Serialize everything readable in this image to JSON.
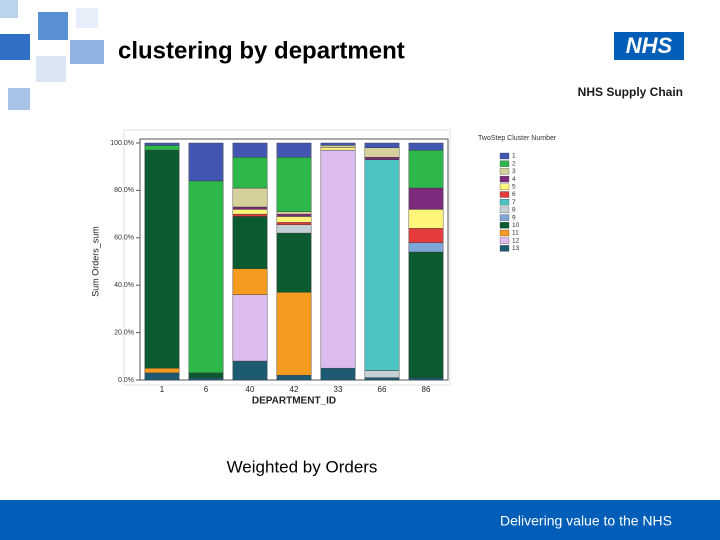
{
  "slide": {
    "title": "clustering by department",
    "logo": "NHS",
    "logo_subtitle": "NHS Supply Chain",
    "caption": "Weighted by Orders",
    "footer": "Delivering value to the NHS"
  },
  "chart_data": {
    "type": "stacked_bar",
    "x_label": "DEPARTMENT_ID",
    "y_label": "Sum Orders_sum",
    "legend_title": "TwoStep Cluster Number",
    "categories": [
      "1",
      "6",
      "40",
      "42",
      "33",
      "66",
      "86"
    ],
    "ylim": [
      0,
      100
    ],
    "yticks": [
      {
        "value": 0,
        "label": "0.0%"
      },
      {
        "value": 20,
        "label": "20.0%"
      },
      {
        "value": 40,
        "label": "40.0%"
      },
      {
        "value": 60,
        "label": "60.0%"
      },
      {
        "value": 80,
        "label": "80.0%"
      },
      {
        "value": 100,
        "label": "100.0%"
      }
    ],
    "series": [
      {
        "name": "1",
        "color": "#4257b2",
        "values": [
          1,
          16,
          6,
          6,
          1,
          2,
          3
        ]
      },
      {
        "name": "2",
        "color": "#2eb84c",
        "values": [
          2,
          81,
          13,
          23,
          0,
          0,
          16
        ]
      },
      {
        "name": "3",
        "color": "#d5d09c",
        "values": [
          0,
          0,
          8,
          1,
          1,
          4,
          0
        ]
      },
      {
        "name": "4",
        "color": "#7c2a7c",
        "values": [
          0,
          0,
          1,
          1,
          0,
          1,
          9
        ]
      },
      {
        "name": "5",
        "color": "#fff57a",
        "values": [
          0,
          0,
          2,
          2.5,
          1,
          0,
          8
        ]
      },
      {
        "name": "6",
        "color": "#e43c3c",
        "values": [
          0,
          0,
          1,
          1,
          0,
          0,
          6
        ]
      },
      {
        "name": "7",
        "color": "#4cc4c4",
        "values": [
          0,
          0,
          0,
          0,
          0,
          89,
          0
        ]
      },
      {
        "name": "8",
        "color": "#c5d1d4",
        "values": [
          0,
          0,
          0,
          3.5,
          0,
          3,
          0
        ]
      },
      {
        "name": "9",
        "color": "#7fa6d8",
        "values": [
          0,
          0,
          0,
          0,
          0,
          0,
          4
        ]
      },
      {
        "name": "10",
        "color": "#0c5a30",
        "values": [
          92,
          2,
          22,
          25,
          0,
          0,
          53
        ]
      },
      {
        "name": "11",
        "color": "#f49b20",
        "values": [
          2,
          0,
          11,
          35,
          0,
          0,
          0
        ]
      },
      {
        "name": "12",
        "color": "#dcbcee",
        "values": [
          0,
          0,
          28,
          0,
          92,
          0,
          0
        ]
      },
      {
        "name": "13",
        "color": "#1d5b72",
        "values": [
          3,
          1,
          8,
          2,
          5,
          1,
          1
        ]
      }
    ]
  }
}
